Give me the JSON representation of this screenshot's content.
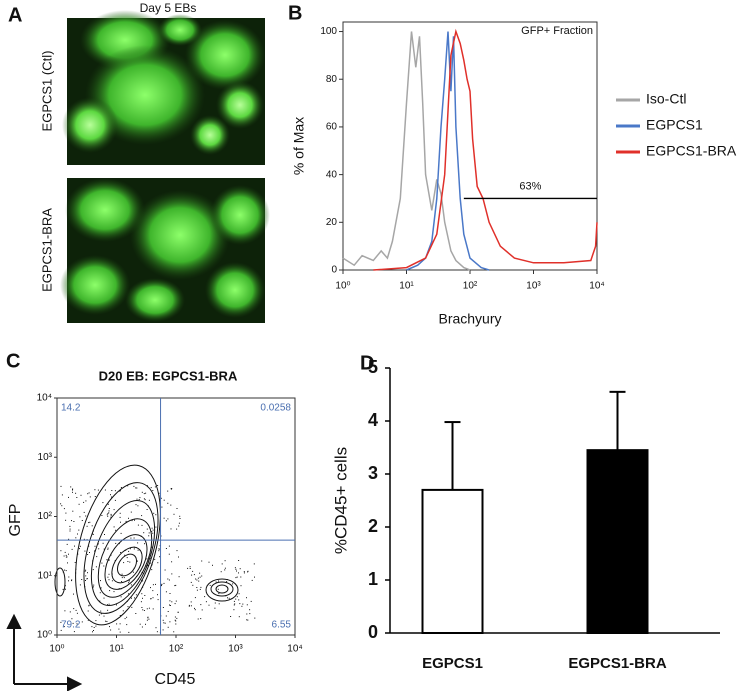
{
  "panel_labels": [
    "A",
    "B",
    "C",
    "D"
  ],
  "images": {
    "title": "Day 5 EBs",
    "labels": [
      "EGPCS1 (Ctl)",
      "EGPCS1-BRA"
    ]
  },
  "chart_data": [
    {
      "type": "line",
      "title": "GFP+ Fraction",
      "x_label": "Brachyury",
      "y_label": "% of Max",
      "x_log": true,
      "xlim": [
        1,
        10000
      ],
      "xticks": [
        {
          "value": 1,
          "label": "10⁰"
        },
        {
          "value": 10,
          "label": "10¹"
        },
        {
          "value": 100,
          "label": "10²"
        },
        {
          "value": 1000,
          "label": "10³"
        },
        {
          "value": 10000,
          "label": "10⁴"
        }
      ],
      "ylim": [
        0,
        104
      ],
      "yticks": [
        0,
        20,
        40,
        60,
        80,
        100
      ],
      "legend": "right",
      "series": [
        {
          "name": "Iso-Ctl",
          "color": "#a6a6a6",
          "x": [
            1,
            1.5,
            2,
            3,
            4,
            5,
            6,
            8,
            10,
            12,
            14,
            16,
            18,
            20,
            25,
            30,
            35,
            40,
            50,
            60,
            80,
            100
          ],
          "values": [
            5,
            2,
            6,
            4,
            8,
            5,
            12,
            30,
            70,
            100,
            85,
            98,
            70,
            40,
            25,
            38,
            32,
            20,
            8,
            4,
            1,
            0
          ]
        },
        {
          "name": "EGPCS1",
          "color": "#4a78c8",
          "x": [
            10,
            15,
            20,
            25,
            30,
            35,
            40,
            45,
            50,
            55,
            60,
            70,
            80,
            100,
            150,
            200
          ],
          "values": [
            0,
            2,
            5,
            12,
            30,
            60,
            80,
            100,
            75,
            98,
            60,
            30,
            15,
            5,
            1,
            0
          ]
        },
        {
          "name": "EGPCS1-BRA",
          "color": "#e0302a",
          "x": [
            3,
            10,
            20,
            30,
            40,
            50,
            60,
            70,
            80,
            90,
            100,
            110,
            130,
            160,
            200,
            300,
            500,
            1000,
            3000,
            8000,
            9500,
            10000
          ],
          "values": [
            0,
            1,
            5,
            15,
            40,
            90,
            100,
            95,
            88,
            80,
            75,
            55,
            35,
            30,
            20,
            10,
            5,
            3,
            3,
            4,
            10,
            20
          ]
        }
      ],
      "gate": {
        "label": "63%",
        "x": [
          80,
          10000
        ],
        "y": 30
      }
    },
    {
      "type": "contour",
      "title": "D20 EB: EGPCS1-BRA",
      "x_label": "CD45",
      "y_label": "GFP",
      "x_log": true,
      "y_log": true,
      "xlim": [
        1,
        10000
      ],
      "ylim": [
        1,
        10000
      ],
      "xticks": [
        {
          "value": 1,
          "label": "10⁰"
        },
        {
          "value": 10,
          "label": "10¹"
        },
        {
          "value": 100,
          "label": "10²"
        },
        {
          "value": 1000,
          "label": "10³"
        },
        {
          "value": 10000,
          "label": "10⁴"
        }
      ],
      "yticks": [
        {
          "value": 1,
          "label": "10⁰"
        },
        {
          "value": 10,
          "label": "10¹"
        },
        {
          "value": 100,
          "label": "10²"
        },
        {
          "value": 1000,
          "label": "10³"
        },
        {
          "value": 10000,
          "label": "10⁴"
        }
      ],
      "gates": {
        "x": 55,
        "y": 40
      },
      "gate_color": "#4a6fb0",
      "quadrant_labels": [
        "14.2",
        "0.0258",
        "79.2",
        "6.55"
      ]
    },
    {
      "type": "bar",
      "y_label": "%CD45+ cells",
      "categories": [
        "EGPCS1",
        "EGPCS1-BRA"
      ],
      "values": [
        2.7,
        3.45
      ],
      "errors": [
        1.28,
        1.1
      ],
      "colors": [
        "#ffffff",
        "#000000"
      ],
      "ylim": [
        0,
        5
      ],
      "yticks": [
        0,
        1,
        2,
        3,
        4,
        5
      ]
    }
  ]
}
